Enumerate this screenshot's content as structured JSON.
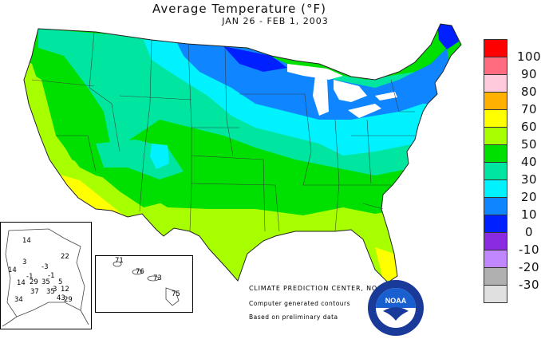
{
  "title": "Average Temperature (°F)",
  "subtitle": "JAN 26 - FEB  1, 2003",
  "legend": [
    {
      "label": "100",
      "color": "#ff0000"
    },
    {
      "label": "90",
      "color": "#ff6b7f"
    },
    {
      "label": "80",
      "color": "#ffcadb"
    },
    {
      "label": "70",
      "color": "#ffb000"
    },
    {
      "label": "60",
      "color": "#ffff00"
    },
    {
      "label": "50",
      "color": "#a8ff00"
    },
    {
      "label": "40",
      "color": "#00e000"
    },
    {
      "label": "30",
      "color": "#00e6a0"
    },
    {
      "label": "20",
      "color": "#00f2ff"
    },
    {
      "label": "10",
      "color": "#0f86ff"
    },
    {
      "label": "0",
      "color": "#0020ff"
    },
    {
      "label": "-10",
      "color": "#8a2be2"
    },
    {
      "label": "-20",
      "color": "#c087ff"
    },
    {
      "label": "-30",
      "color": "#b0b0b0"
    },
    {
      "label": "",
      "color": "#e0e0e0"
    }
  ],
  "alaska_labels": [
    "14",
    "22",
    "3",
    "-3",
    "14",
    "-1",
    "14",
    "29",
    "35",
    "5",
    "-1",
    "3",
    "12",
    "37",
    "35",
    "43",
    "34",
    "29"
  ],
  "hawaii_labels": [
    "71",
    "76",
    "73",
    "75"
  ],
  "credits": {
    "org": "CLIMATE PREDICTION CENTER, NOAA",
    "line1": "Computer generated contours",
    "line2": "Based on preliminary data"
  },
  "logo_text": "NOAA"
}
